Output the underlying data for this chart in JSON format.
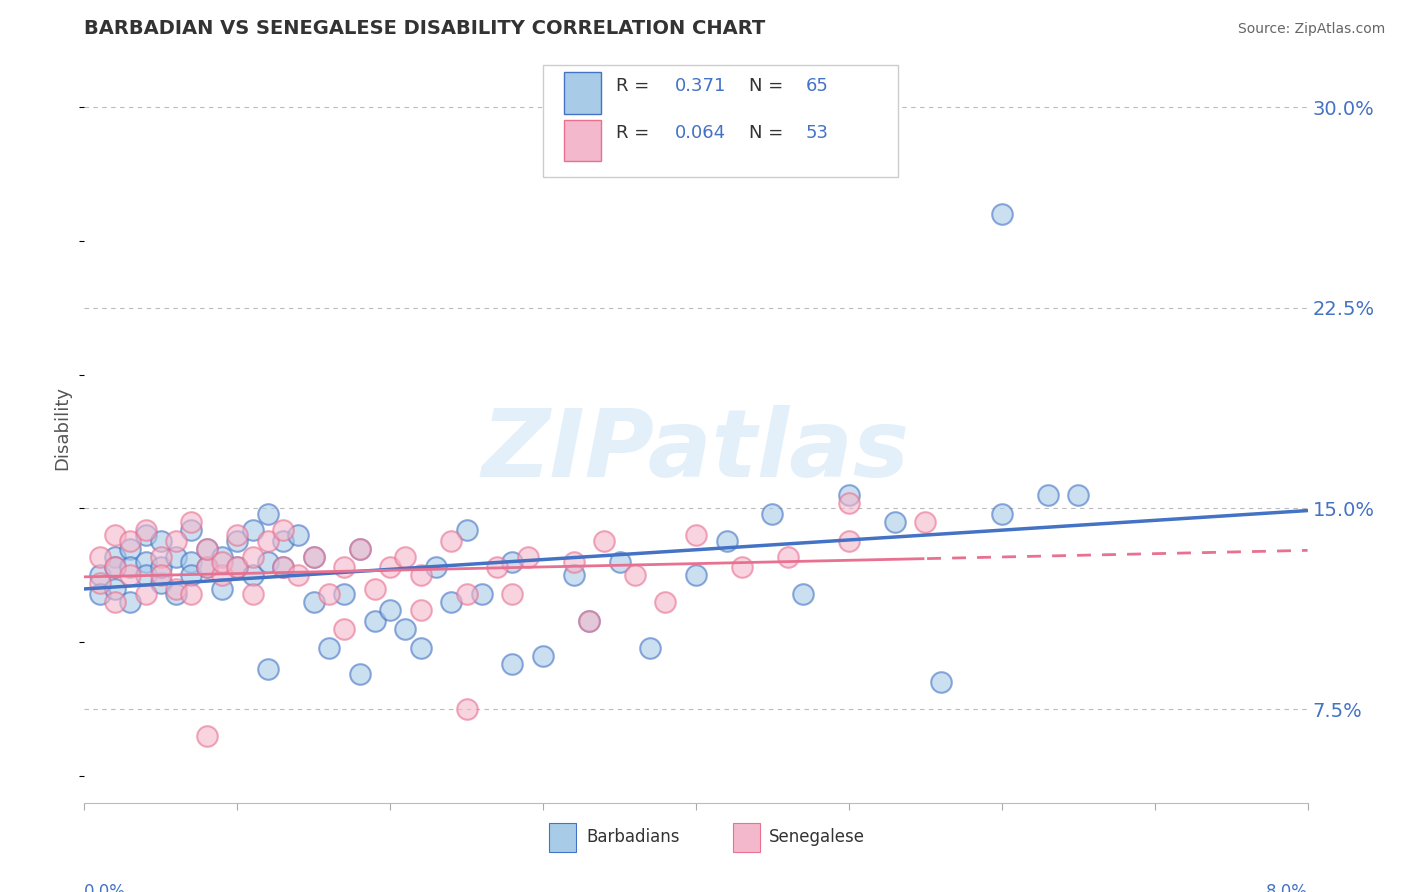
{
  "title": "BARBADIAN VS SENEGALESE DISABILITY CORRELATION CHART",
  "source": "Source: ZipAtlas.com",
  "ylabel": "Disability",
  "xlim": [
    0.0,
    0.08
  ],
  "ylim": [
    0.04,
    0.32
  ],
  "yticks": [
    0.075,
    0.15,
    0.225,
    0.3
  ],
  "ytick_labels": [
    "7.5%",
    "15.0%",
    "22.5%",
    "30.0%"
  ],
  "barbadian_color": "#a8cce8",
  "senegalese_color": "#f4b8cc",
  "barbadian_line_color": "#4472c4",
  "senegalese_line_color": "#e87090",
  "R_barbadian": 0.371,
  "N_barbadian": 65,
  "R_senegalese": 0.064,
  "N_senegalese": 53,
  "watermark": "ZIPatlas",
  "legend_R_N_color": "#4472c4",
  "legend_text_color": "#333333"
}
